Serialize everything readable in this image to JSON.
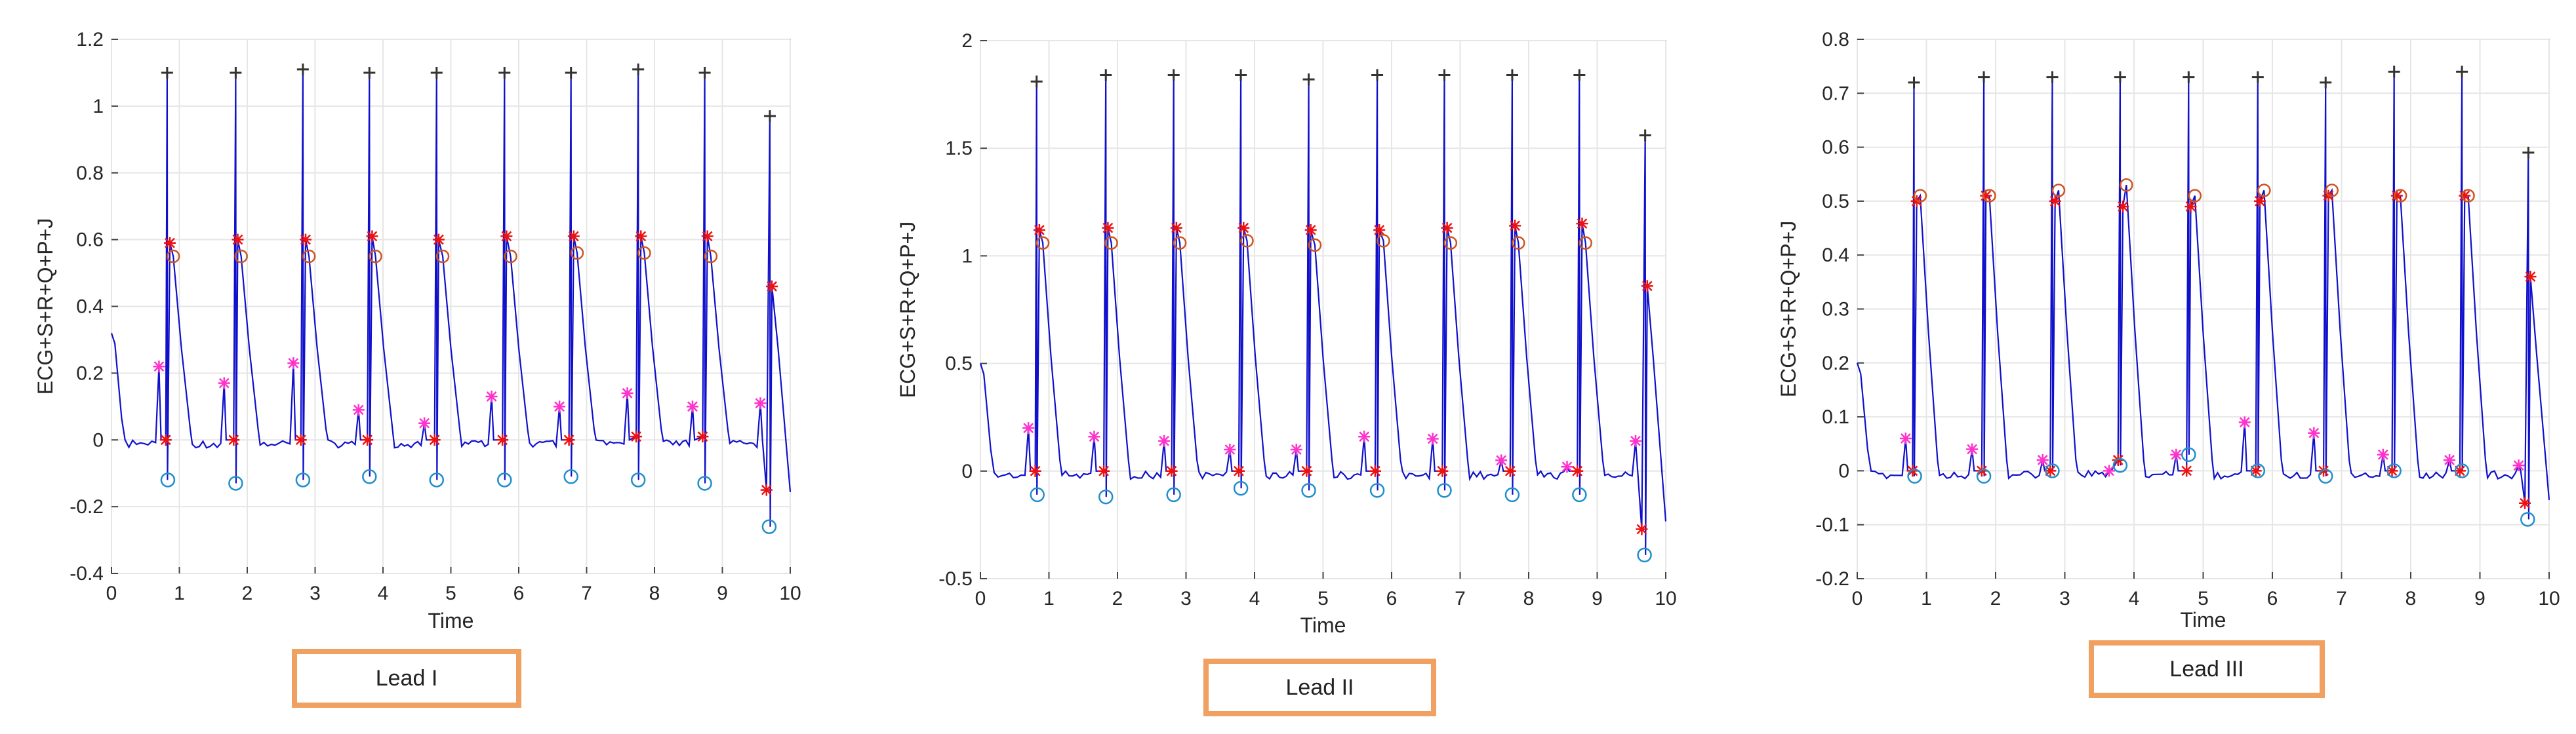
{
  "chart_data": [
    {
      "type": "line",
      "caption": "Lead I",
      "xlabel": "Time",
      "ylabel": "ECG+S+R+Q+P+J",
      "xlim": [
        0,
        10
      ],
      "ylim": [
        -0.4,
        1.2
      ],
      "xticks": [
        0,
        1,
        2,
        3,
        4,
        5,
        6,
        7,
        8,
        9,
        10
      ],
      "yticks": [
        -0.4,
        -0.2,
        0,
        0.2,
        0.4,
        0.6,
        0.8,
        1,
        1.2
      ],
      "grid": true,
      "series": [
        {
          "marker": "black-plus",
          "x": [
            0.82,
            1.83,
            2.82,
            3.8,
            4.79,
            5.79,
            6.77,
            7.76,
            8.74,
            9.7
          ],
          "y": [
            1.1,
            1.1,
            1.11,
            1.1,
            1.1,
            1.1,
            1.1,
            1.11,
            1.1,
            0.97
          ]
        },
        {
          "marker": "red-asterisk",
          "x": [
            0.86,
            1.86,
            2.86,
            3.84,
            4.82,
            5.82,
            6.81,
            7.8,
            8.78,
            9.73
          ],
          "y": [
            0.59,
            0.6,
            0.6,
            0.61,
            0.6,
            0.61,
            0.61,
            0.61,
            0.61,
            0.46
          ]
        },
        {
          "marker": "orange-circle",
          "x": [
            0.91,
            1.91,
            2.91,
            3.89,
            4.88,
            5.88,
            6.86,
            7.85,
            8.83
          ],
          "y": [
            0.55,
            0.55,
            0.55,
            0.55,
            0.55,
            0.55,
            0.56,
            0.56,
            0.55
          ]
        },
        {
          "marker": "magenta-asterisk",
          "x": [
            0.7,
            1.66,
            2.68,
            3.64,
            4.61,
            5.6,
            6.6,
            7.6,
            8.56,
            9.56
          ],
          "y": [
            0.22,
            0.17,
            0.23,
            0.09,
            0.05,
            0.13,
            0.1,
            0.14,
            0.1,
            0.11
          ]
        },
        {
          "marker": "red-q-asterisk",
          "x": [
            0.8,
            1.8,
            2.79,
            3.77,
            4.76,
            5.76,
            6.74,
            7.73,
            8.71,
            9.65
          ],
          "y": [
            0.0,
            0.0,
            0.0,
            0.0,
            0.0,
            0.0,
            0.0,
            0.01,
            0.01,
            -0.15
          ]
        },
        {
          "marker": "cyan-circle",
          "x": [
            0.83,
            1.83,
            2.82,
            3.8,
            4.79,
            5.79,
            6.77,
            7.76,
            8.74,
            9.69
          ],
          "y": [
            -0.12,
            -0.13,
            -0.12,
            -0.11,
            -0.12,
            -0.12,
            -0.11,
            -0.12,
            -0.13,
            -0.26
          ]
        }
      ]
    },
    {
      "type": "line",
      "caption": "Lead II",
      "xlabel": "Time",
      "ylabel": "ECG+S+R+Q+P+J",
      "xlim": [
        0,
        10
      ],
      "ylim": [
        -0.5,
        2
      ],
      "xticks": [
        0,
        1,
        2,
        3,
        4,
        5,
        6,
        7,
        8,
        9,
        10
      ],
      "yticks": [
        -0.5,
        0,
        0.5,
        1,
        1.5,
        2
      ],
      "grid": true,
      "series": [
        {
          "marker": "black-plus",
          "x": [
            0.82,
            1.83,
            2.82,
            3.8,
            4.79,
            5.79,
            6.77,
            7.76,
            8.74,
            9.7
          ],
          "y": [
            1.81,
            1.84,
            1.84,
            1.84,
            1.82,
            1.84,
            1.84,
            1.84,
            1.84,
            1.56
          ]
        },
        {
          "marker": "red-asterisk",
          "x": [
            0.86,
            1.86,
            2.86,
            3.84,
            4.82,
            5.82,
            6.81,
            7.8,
            8.78,
            9.73
          ],
          "y": [
            1.12,
            1.13,
            1.13,
            1.13,
            1.12,
            1.12,
            1.13,
            1.14,
            1.15,
            0.86
          ]
        },
        {
          "marker": "orange-circle",
          "x": [
            0.91,
            1.91,
            2.91,
            3.89,
            4.88,
            5.88,
            6.86,
            7.85,
            8.83
          ],
          "y": [
            1.06,
            1.06,
            1.06,
            1.07,
            1.05,
            1.07,
            1.06,
            1.06,
            1.06
          ]
        },
        {
          "marker": "magenta-asterisk",
          "x": [
            0.7,
            1.66,
            2.68,
            3.64,
            4.61,
            5.6,
            6.6,
            7.6,
            8.56,
            9.56
          ],
          "y": [
            0.2,
            0.16,
            0.14,
            0.1,
            0.1,
            0.16,
            0.15,
            0.05,
            0.02,
            0.14
          ]
        },
        {
          "marker": "red-q-asterisk",
          "x": [
            0.8,
            1.8,
            2.79,
            3.77,
            4.76,
            5.76,
            6.74,
            7.73,
            8.71,
            9.65
          ],
          "y": [
            0.0,
            0.0,
            0.0,
            0.0,
            0.0,
            0.0,
            0.0,
            0.0,
            0.0,
            -0.27
          ]
        },
        {
          "marker": "cyan-circle",
          "x": [
            0.83,
            1.83,
            2.82,
            3.8,
            4.79,
            5.79,
            6.77,
            7.76,
            8.74,
            9.69
          ],
          "y": [
            -0.11,
            -0.12,
            -0.11,
            -0.08,
            -0.09,
            -0.09,
            -0.09,
            -0.11,
            -0.11,
            -0.39
          ]
        }
      ]
    },
    {
      "type": "line",
      "caption": "Lead III",
      "xlabel": "Time",
      "ylabel": "ECG+S+R+Q+P+J",
      "xlim": [
        0,
        10
      ],
      "ylim": [
        -0.2,
        0.8
      ],
      "xticks": [
        0,
        1,
        2,
        3,
        4,
        5,
        6,
        7,
        8,
        9,
        10
      ],
      "yticks": [
        -0.2,
        -0.1,
        0,
        0.1,
        0.2,
        0.3,
        0.4,
        0.5,
        0.6,
        0.7,
        0.8
      ],
      "grid": true,
      "series": [
        {
          "marker": "black-plus",
          "x": [
            0.82,
            1.83,
            2.82,
            3.8,
            4.79,
            5.79,
            6.77,
            7.76,
            8.74,
            9.7
          ],
          "y": [
            0.72,
            0.73,
            0.73,
            0.73,
            0.73,
            0.73,
            0.72,
            0.74,
            0.74,
            0.59
          ]
        },
        {
          "marker": "red-asterisk",
          "x": [
            0.86,
            1.86,
            2.86,
            3.84,
            4.82,
            5.82,
            6.81,
            7.8,
            8.78,
            9.73
          ],
          "y": [
            0.5,
            0.51,
            0.5,
            0.49,
            0.49,
            0.5,
            0.51,
            0.51,
            0.51,
            0.36
          ]
        },
        {
          "marker": "orange-circle",
          "x": [
            0.91,
            1.91,
            2.91,
            3.89,
            4.88,
            5.88,
            6.86,
            7.85,
            8.83
          ],
          "y": [
            0.51,
            0.51,
            0.52,
            0.53,
            0.51,
            0.52,
            0.52,
            0.51,
            0.51
          ]
        },
        {
          "marker": "magenta-asterisk",
          "x": [
            0.7,
            1.66,
            2.68,
            3.64,
            4.61,
            5.6,
            6.6,
            7.6,
            8.56,
            9.56
          ],
          "y": [
            0.06,
            0.04,
            0.02,
            0.0,
            0.03,
            0.09,
            0.07,
            0.03,
            0.02,
            0.01
          ]
        },
        {
          "marker": "red-q-asterisk",
          "x": [
            0.8,
            1.8,
            2.79,
            3.77,
            4.76,
            5.76,
            6.74,
            7.73,
            8.71,
            9.65
          ],
          "y": [
            0.0,
            0.0,
            0.0,
            0.02,
            0.0,
            0.0,
            0.0,
            0.0,
            0.0,
            -0.06
          ]
        },
        {
          "marker": "cyan-circle",
          "x": [
            0.83,
            1.83,
            2.82,
            3.8,
            4.79,
            5.79,
            6.77,
            7.76,
            8.74,
            9.69
          ],
          "y": [
            -0.01,
            -0.01,
            0.0,
            0.01,
            0.03,
            0.0,
            -0.01,
            0.0,
            0.0,
            -0.09
          ]
        }
      ]
    }
  ],
  "colors": {
    "signal": "#1010cc",
    "peak_black": "#333333",
    "red": "#ee1111",
    "magenta": "#ff33cc",
    "orange": "#cc5522",
    "cyan": "#1f8fcc",
    "grid": "#e6e6e6",
    "box_border": "#f0a060"
  }
}
